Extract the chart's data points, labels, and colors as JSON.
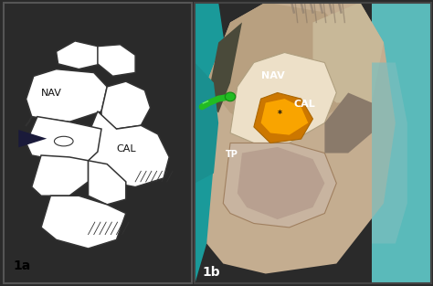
{
  "figure_width": 4.74,
  "figure_height": 3.13,
  "dpi": 100,
  "background_color": "#2a2a2a",
  "panel_a": {
    "label": "1a",
    "background": "#ffffff",
    "border_color": "#333333",
    "label_color": "#000000",
    "label_fontsize": 10,
    "nav_label": "NAV",
    "cal_label": "CAL",
    "label_text_color": "#111111",
    "label_text_fontsize": 8,
    "line_color": "#333333",
    "arrow_color": "#1a1f40",
    "linewidth": 1.1
  },
  "panel_b": {
    "label": "1b",
    "label_color": "#ffffff",
    "label_fontsize": 10,
    "nav_label": "NAV",
    "cal_label": "CAL",
    "tp_label": "TP",
    "star_label": "*",
    "label_text_color": "#ffffff",
    "label_text_fontsize": 8,
    "bg_teal": "#1a9a9a",
    "tissue_main": "#c4ad90",
    "tissue_dark": "#9a7a5a",
    "tissue_light": "#ddd0b8",
    "nav_white": "#ede0c8",
    "orange_dark": "#cc7700",
    "orange_bright": "#ffaa00",
    "cavity_color": "#b09878",
    "cavity_dark": "#7a5a3a",
    "teal_right": "#5ababa",
    "green_probe": "#22bb22",
    "border_color": "#222222"
  }
}
